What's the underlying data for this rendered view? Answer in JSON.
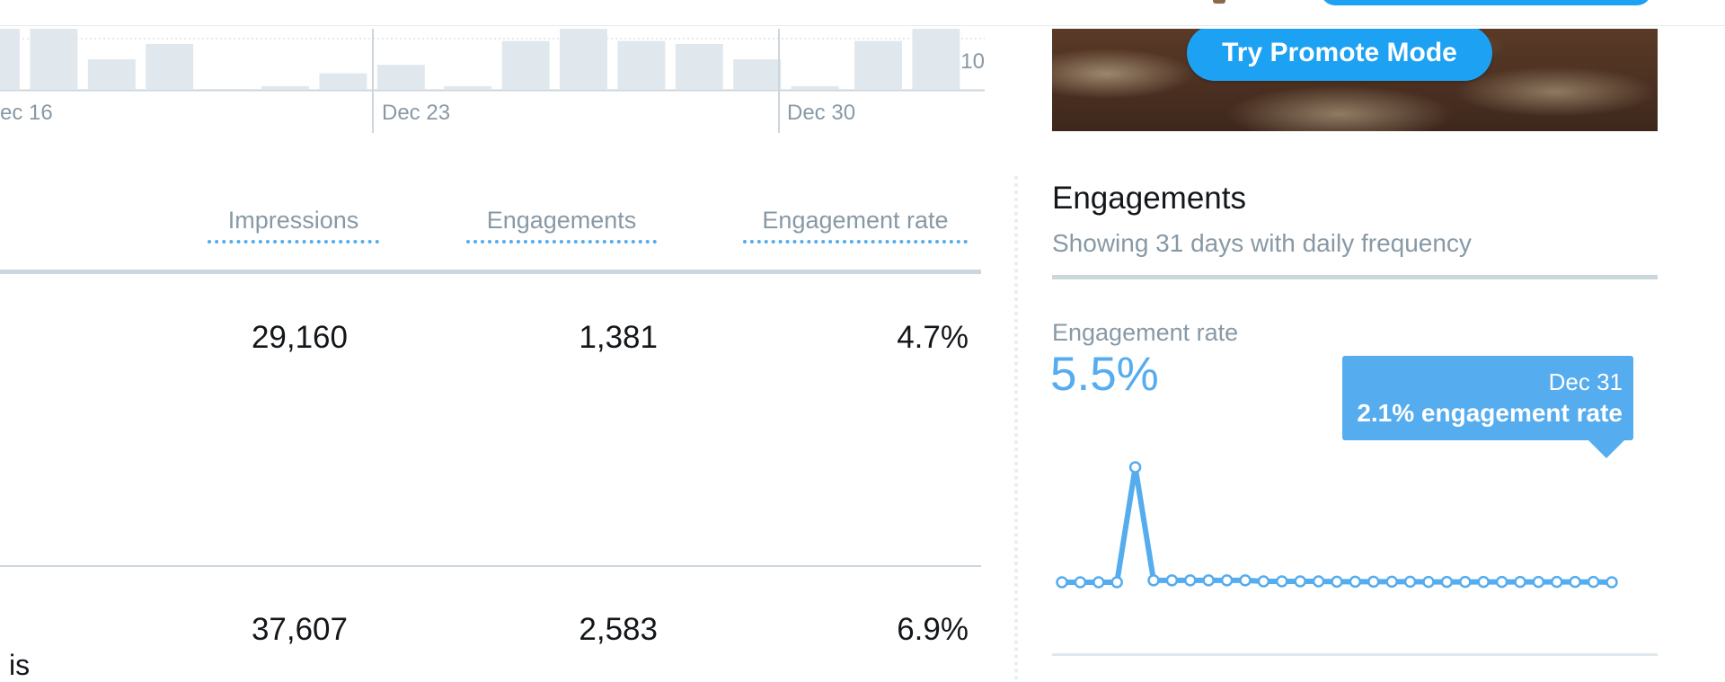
{
  "mini_chart": {
    "type": "bar",
    "y_max_label": "10",
    "x_tick_labels": [
      "ec 16",
      "Dec 23",
      "Dec 30"
    ],
    "bar_values": [
      10,
      10,
      5,
      7.5,
      0,
      0.6,
      2.7,
      4.1,
      0.6,
      8,
      10,
      8,
      7.5,
      5,
      0.6,
      8,
      10
    ]
  },
  "promo": {
    "button_label": "Try Promote Mode"
  },
  "table": {
    "headers": {
      "impressions": "Impressions",
      "engagements": "Engagements",
      "engagement_rate": "Engagement rate"
    },
    "rows": [
      {
        "impressions": "29,160",
        "engagements": "1,381",
        "engagement_rate": "4.7%"
      },
      {
        "impressions": "37,607",
        "engagements": "2,583",
        "engagement_rate": "6.9%",
        "text_fragment": "is"
      }
    ]
  },
  "panel": {
    "title": "Engagements",
    "subtitle": "Showing 31 days with daily frequency",
    "metric_label": "Engagement rate",
    "metric_value": "5.5%",
    "tooltip": {
      "date": "Dec 31",
      "text": "2.1% engagement rate"
    }
  },
  "chart_data": {
    "type": "line",
    "series": [
      {
        "values": [
          0,
          0,
          0,
          0,
          6.2,
          0.1,
          0.1,
          0.1,
          0.1,
          0.1,
          0.1,
          0.05,
          0.05,
          0.05,
          0.05,
          0.03,
          0.03,
          0.03,
          0.03,
          0.03,
          0.02,
          0.02,
          0.02,
          0.02,
          0.02,
          0.02,
          0.02,
          0.02,
          0.02,
          0.02,
          0.0
        ]
      }
    ]
  },
  "colors": {
    "accent": "#55acee",
    "promo_blue": "#1da1f2",
    "muted_text": "#8899a6",
    "bar_fill": "#e1e8ed"
  }
}
